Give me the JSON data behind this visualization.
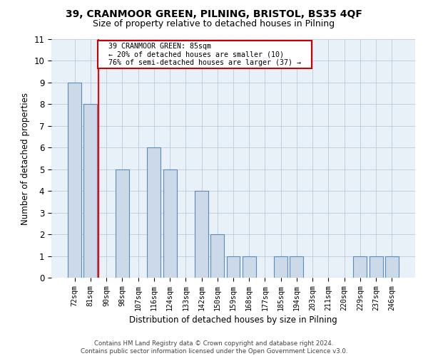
{
  "title1": "39, CRANMOOR GREEN, PILNING, BRISTOL, BS35 4QF",
  "title2": "Size of property relative to detached houses in Pilning",
  "xlabel": "Distribution of detached houses by size in Pilning",
  "ylabel": "Number of detached properties",
  "categories": [
    "72sqm",
    "81sqm",
    "90sqm",
    "98sqm",
    "107sqm",
    "116sqm",
    "124sqm",
    "133sqm",
    "142sqm",
    "150sqm",
    "159sqm",
    "168sqm",
    "177sqm",
    "185sqm",
    "194sqm",
    "203sqm",
    "211sqm",
    "220sqm",
    "229sqm",
    "237sqm",
    "246sqm"
  ],
  "values": [
    9,
    8,
    0,
    5,
    0,
    6,
    5,
    0,
    4,
    2,
    1,
    1,
    0,
    1,
    1,
    0,
    0,
    0,
    1,
    1,
    1
  ],
  "bar_color": "#ccd9e8",
  "bar_edge_color": "#5b8db8",
  "annotation_title": "39 CRANMOOR GREEN: 85sqm",
  "annotation_line1": "← 20% of detached houses are smaller (10)",
  "annotation_line2": "76% of semi-detached houses are larger (37) →",
  "annotation_box_color": "#ffffff",
  "annotation_box_edge": "#cc0000",
  "red_line_index": 1.5,
  "footer1": "Contains HM Land Registry data © Crown copyright and database right 2024.",
  "footer2": "Contains public sector information licensed under the Open Government Licence v3.0.",
  "ylim_max": 11,
  "background_color": "#e8f0f8"
}
